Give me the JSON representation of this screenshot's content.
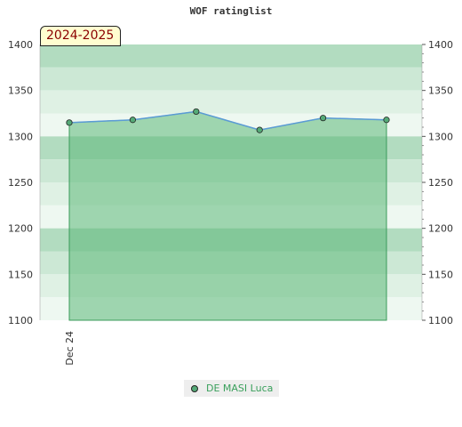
{
  "chart_data": {
    "type": "area",
    "title": "WOF ratinglist",
    "season_label": "2024-2025",
    "series": [
      {
        "name": "DE MASI Luca",
        "values": [
          1315,
          1318,
          1327,
          1307,
          1320,
          1318
        ]
      }
    ],
    "x_tick_labels": [
      "Dec 24"
    ],
    "y_ticks": [
      1100,
      1150,
      1200,
      1250,
      1300,
      1350,
      1400
    ],
    "ylim": [
      1100,
      1400
    ],
    "legend_position": "bottom-center",
    "grid": true,
    "colors": {
      "line": "#5b9bd5",
      "fill": "#5cb878",
      "marker": "#55aa77",
      "band_dark": "#b2dcc0",
      "band_mid": "#cce8d5",
      "band_light": "#dff1e4",
      "band_lightest": "#eef8f1"
    }
  }
}
